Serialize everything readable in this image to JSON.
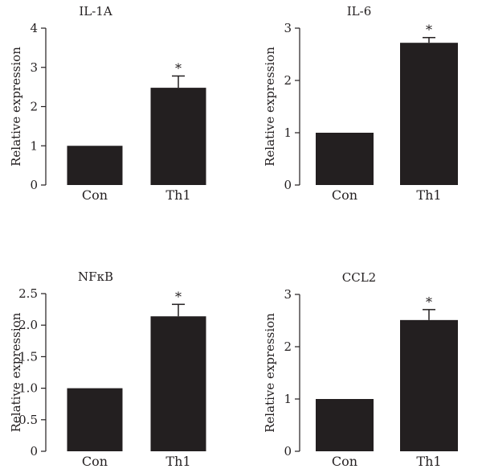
{
  "chart_data": [
    {
      "type": "bar",
      "title": "IL-1A",
      "ylabel": "Relative expression",
      "categories": [
        "Con",
        "Th1"
      ],
      "values": [
        1.0,
        2.48
      ],
      "errors": [
        0,
        0.3
      ],
      "significance": [
        "",
        "*"
      ],
      "ylim": [
        0,
        4
      ],
      "yticks": [
        "0",
        "1",
        "2",
        "3",
        "4"
      ],
      "grid": false,
      "bar_color": "#231f20"
    },
    {
      "type": "bar",
      "title": "IL-6",
      "ylabel": "Relative expression",
      "categories": [
        "Con",
        "Th1"
      ],
      "values": [
        1.0,
        2.72
      ],
      "errors": [
        0,
        0.1
      ],
      "significance": [
        "",
        "*"
      ],
      "ylim": [
        0,
        3
      ],
      "yticks": [
        "0",
        "1",
        "2",
        "3"
      ],
      "grid": false,
      "bar_color": "#231f20"
    },
    {
      "type": "bar",
      "title": "NFκB",
      "ylabel": "Relative expression",
      "categories": [
        "Con",
        "Th1"
      ],
      "values": [
        1.0,
        2.14
      ],
      "errors": [
        0,
        0.19
      ],
      "significance": [
        "",
        "*"
      ],
      "ylim": [
        0,
        2.5
      ],
      "yticks": [
        "0",
        "0.5",
        "1.0",
        "1.5",
        "2.0",
        "2.5"
      ],
      "grid": false,
      "bar_color": "#231f20"
    },
    {
      "type": "bar",
      "title": "CCL2",
      "ylabel": "Relative expression",
      "categories": [
        "Con",
        "Th1"
      ],
      "values": [
        1.0,
        2.51
      ],
      "errors": [
        0,
        0.2
      ],
      "significance": [
        "",
        "*"
      ],
      "ylim": [
        0,
        3
      ],
      "yticks": [
        "0",
        "1",
        "2",
        "3"
      ],
      "grid": false,
      "bar_color": "#231f20"
    }
  ]
}
